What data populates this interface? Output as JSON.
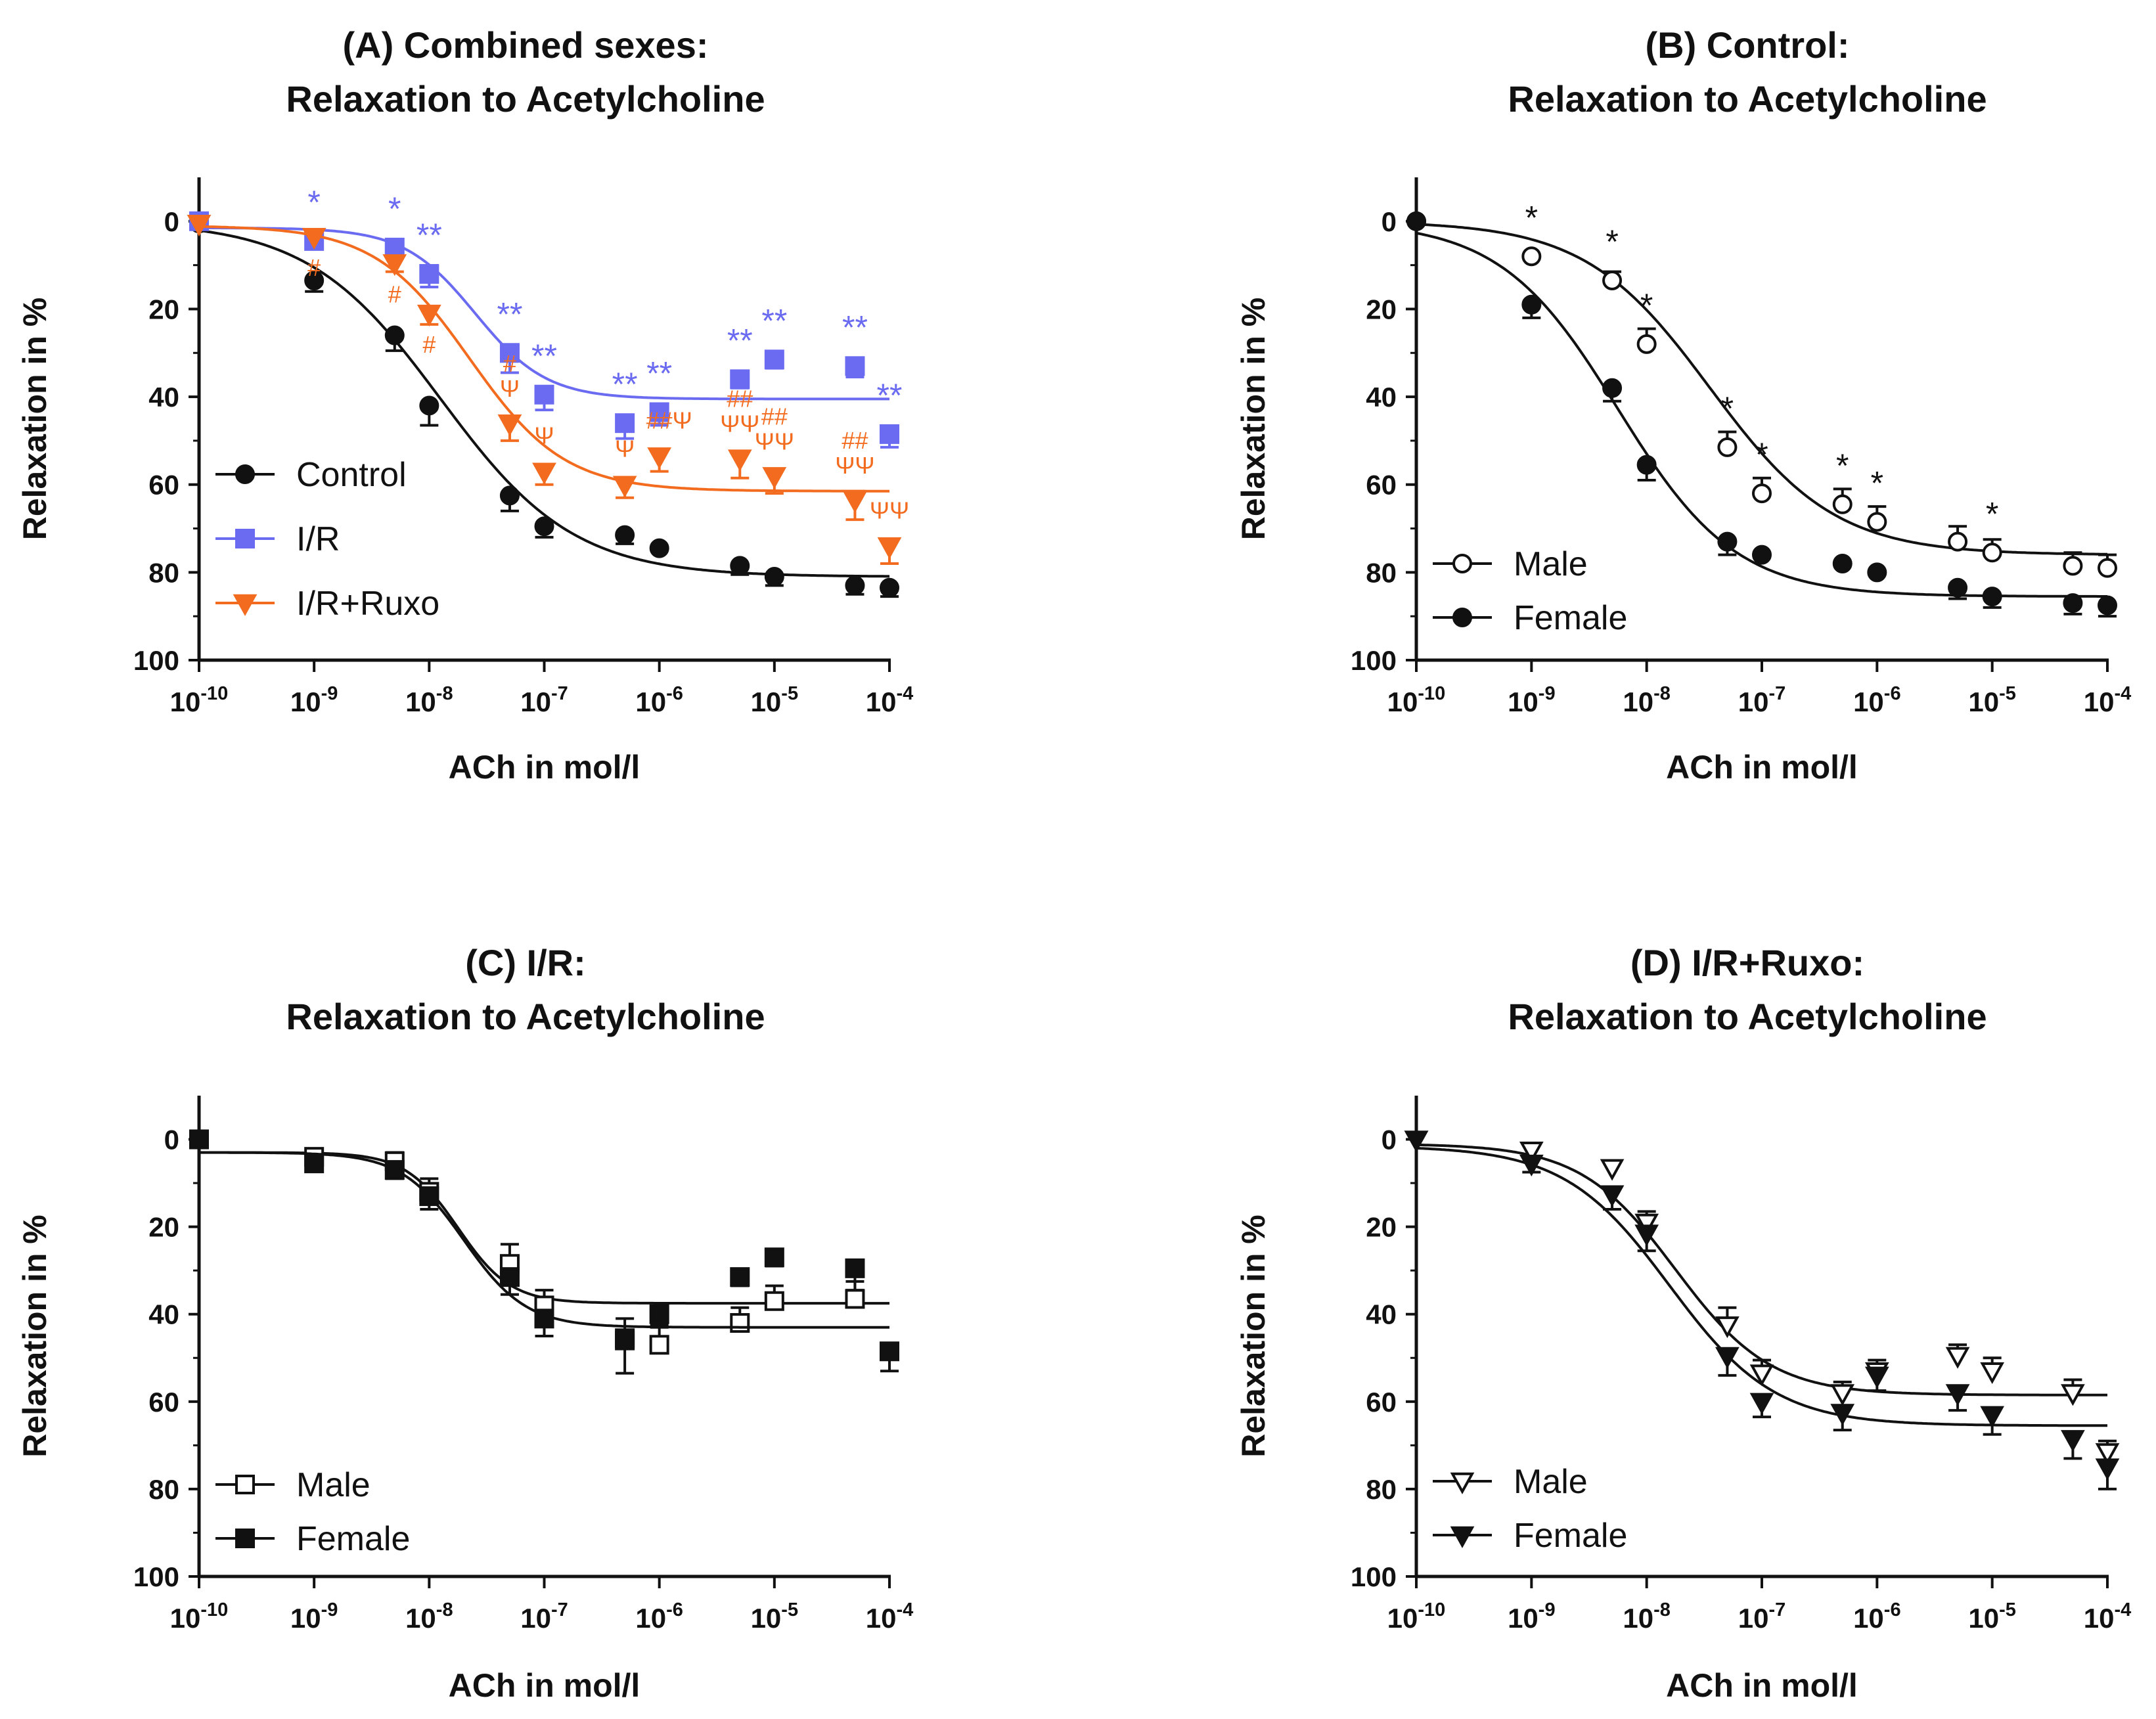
{
  "chart_data": [
    {
      "id": "A",
      "type": "scatter",
      "title": [
        "(A) Combined sexes:",
        "Relaxation to Acetylcholine"
      ],
      "xlabel": "ACh in mol/l",
      "ylabel": "Relaxation in %",
      "xscale": "log",
      "xlim": [
        -10,
        -4
      ],
      "ylim": [
        -10,
        100
      ],
      "y_inverted": true,
      "yticks": [
        "0",
        "20",
        "40",
        "60",
        "80",
        "100"
      ],
      "xticks": [
        {
          "base": "10",
          "exp": "-10"
        },
        {
          "base": "10",
          "exp": "-9"
        },
        {
          "base": "10",
          "exp": "-8"
        },
        {
          "base": "10",
          "exp": "-7"
        },
        {
          "base": "10",
          "exp": "-6"
        },
        {
          "base": "10",
          "exp": "-5"
        },
        {
          "base": "10",
          "exp": "-4"
        }
      ],
      "legend_position": "bottom-left",
      "series": [
        {
          "name": "Control",
          "color": "#111111",
          "marker": "circle",
          "filled": true,
          "x": [
            -10,
            -9,
            -8.3,
            -8,
            -7.3,
            -7,
            -6.3,
            -6,
            -5.3,
            -5,
            -4.3,
            -4
          ],
          "y": [
            0.5,
            13.5,
            26,
            42,
            62.5,
            69.5,
            71.5,
            74.5,
            78.5,
            81,
            83,
            83.5
          ],
          "err": [
            1,
            2.5,
            3.5,
            4.5,
            3.5,
            2.5,
            2,
            1.5,
            2,
            2,
            2,
            2
          ],
          "fit": {
            "top": 0,
            "bottom": 81,
            "logec50": -7.9,
            "hill": 0.75
          }
        },
        {
          "name": "I/R",
          "color": "#6b6bf2",
          "marker": "square",
          "filled": true,
          "x": [
            -10,
            -9,
            -8.3,
            -8,
            -7.3,
            -7,
            -6.3,
            -6,
            -5.3,
            -5,
            -4.3,
            -4
          ],
          "y": [
            0,
            4.5,
            6,
            12,
            30,
            39.5,
            46,
            43.5,
            36,
            31.5,
            33,
            48.5
          ],
          "err": [
            1,
            1.5,
            2,
            3,
            4.5,
            3.5,
            3.5,
            3,
            2,
            2,
            2.5,
            3
          ],
          "fit": {
            "top": 1.5,
            "bottom": 40.5,
            "logec50": -7.6,
            "hill": 1.4
          }
        },
        {
          "name": "I/R+Ruxo",
          "color": "#f26b1e",
          "marker": "triangle-down",
          "filled": true,
          "x": [
            -10,
            -9,
            -8.3,
            -8,
            -7.3,
            -7,
            -6.3,
            -6,
            -5.3,
            -5,
            -4.3,
            -4
          ],
          "y": [
            0.5,
            3.5,
            9.5,
            21,
            46,
            57,
            60,
            53.5,
            54,
            58,
            63.5,
            74
          ],
          "err": [
            1,
            1.5,
            2,
            2.5,
            4,
            3,
            3,
            3.5,
            4.5,
            4,
            4.5,
            4
          ],
          "fit": {
            "top": 1,
            "bottom": 61.5,
            "logec50": -7.65,
            "hill": 1.05
          }
        }
      ],
      "annotations": [
        {
          "text": "*",
          "x": -9,
          "y": 4.5,
          "color": "#6b6bf2"
        },
        {
          "text": "*",
          "x": -8.3,
          "y": 6,
          "color": "#6b6bf2"
        },
        {
          "text": "**",
          "x": -8,
          "y": 12,
          "color": "#6b6bf2"
        },
        {
          "text": "**",
          "x": -7.3,
          "y": 30,
          "color": "#6b6bf2"
        },
        {
          "text": "**",
          "x": -7,
          "y": 39.5,
          "color": "#6b6bf2"
        },
        {
          "text": "**",
          "x": -6.3,
          "y": 46,
          "color": "#6b6bf2"
        },
        {
          "text": "**",
          "x": -6,
          "y": 43.5,
          "color": "#6b6bf2"
        },
        {
          "text": "**",
          "x": -5.3,
          "y": 36,
          "color": "#6b6bf2"
        },
        {
          "text": "**",
          "x": -5,
          "y": 31.5,
          "color": "#6b6bf2"
        },
        {
          "text": "**",
          "x": -4.3,
          "y": 33,
          "color": "#6b6bf2"
        },
        {
          "text": "**",
          "x": -4,
          "y": 48.5,
          "color": "#6b6bf2"
        },
        {
          "text": "#",
          "x": -9,
          "y": 3.5,
          "color": "#f26b1e",
          "below": true
        },
        {
          "text": "#",
          "x": -8.3,
          "y": 9.5,
          "color": "#f26b1e",
          "below": true
        },
        {
          "text": "#",
          "x": -8,
          "y": 21,
          "color": "#f26b1e",
          "below": true
        },
        {
          "text": "#",
          "x": -7.3,
          "y": 46,
          "color": "#f26b1e",
          "offset": -2
        },
        {
          "text": "Ψ",
          "x": -7.3,
          "y": 46,
          "color": "#f26b1e",
          "offset": -1
        },
        {
          "text": "Ψ",
          "x": -7,
          "y": 57,
          "color": "#f26b1e"
        },
        {
          "text": "Ψ",
          "x": -6.3,
          "y": 60,
          "color": "#f26b1e"
        },
        {
          "text": "##",
          "x": -6,
          "y": 53.5,
          "color": "#f26b1e"
        },
        {
          "text": "Ψ",
          "x": -5.8,
          "y": 53.5,
          "color": "#f26b1e",
          "shift": true
        },
        {
          "text": "##",
          "x": -5.3,
          "y": 54,
          "color": "#f26b1e",
          "offset": -2
        },
        {
          "text": "ΨΨ",
          "x": -5.3,
          "y": 54,
          "color": "#f26b1e",
          "offset": -1
        },
        {
          "text": "##",
          "x": -5,
          "y": 58,
          "color": "#f26b1e",
          "offset": -2
        },
        {
          "text": "ΨΨ",
          "x": -5,
          "y": 58,
          "color": "#f26b1e",
          "offset": -1
        },
        {
          "text": "##",
          "x": -4.3,
          "y": 63.5,
          "color": "#f26b1e",
          "offset": -2
        },
        {
          "text": "ΨΨ",
          "x": -4.3,
          "y": 63.5,
          "color": "#f26b1e",
          "offset": -1
        },
        {
          "text": "ΨΨ",
          "x": -4,
          "y": 74,
          "color": "#f26b1e"
        }
      ]
    },
    {
      "id": "B",
      "type": "scatter",
      "title": [
        "(B) Control:",
        "Relaxation to Acetylcholine"
      ],
      "xlabel": "ACh in mol/l",
      "ylabel": "Relaxation in %",
      "xscale": "log",
      "xlim": [
        -10,
        -4
      ],
      "ylim": [
        -10,
        100
      ],
      "y_inverted": true,
      "yticks": [
        "0",
        "20",
        "40",
        "60",
        "80",
        "100"
      ],
      "xticks": [
        {
          "base": "10",
          "exp": "-10"
        },
        {
          "base": "10",
          "exp": "-9"
        },
        {
          "base": "10",
          "exp": "-8"
        },
        {
          "base": "10",
          "exp": "-7"
        },
        {
          "base": "10",
          "exp": "-6"
        },
        {
          "base": "10",
          "exp": "-5"
        },
        {
          "base": "10",
          "exp": "-4"
        }
      ],
      "legend_position": "bottom-left",
      "series": [
        {
          "name": "Male",
          "color": "#111111",
          "marker": "circle",
          "filled": false,
          "x": [
            -10,
            -9,
            -8.3,
            -8,
            -7.3,
            -7,
            -6.3,
            -6,
            -5.3,
            -5,
            -4.3,
            -4
          ],
          "y": [
            0,
            8,
            13.5,
            28,
            51.5,
            62,
            64.5,
            68.5,
            73,
            75.5,
            78.5,
            79
          ],
          "err": [
            1,
            1.5,
            2,
            3.5,
            3.5,
            3.5,
            3.5,
            3.5,
            3.5,
            3,
            3,
            3
          ],
          "fit": {
            "top": 0,
            "bottom": 76,
            "logec50": -7.45,
            "hill": 0.8
          }
        },
        {
          "name": "Female",
          "color": "#111111",
          "marker": "circle",
          "filled": true,
          "x": [
            -10,
            -9,
            -8.3,
            -8,
            -7.3,
            -7,
            -6.3,
            -6,
            -5.3,
            -5,
            -4.3,
            -4
          ],
          "y": [
            0,
            19,
            38,
            55.5,
            73,
            76,
            78,
            80,
            83.5,
            85.5,
            87,
            87.5
          ],
          "err": [
            1,
            3,
            3,
            3.5,
            3,
            1.5,
            1.5,
            1.5,
            2.5,
            2.5,
            2.5,
            2.5
          ],
          "fit": {
            "top": 0,
            "bottom": 85.5,
            "logec50": -8.25,
            "hill": 0.85
          }
        }
      ],
      "annotations": [
        {
          "text": "*",
          "x": -9,
          "y": 8,
          "color": "#111111"
        },
        {
          "text": "*",
          "x": -8.3,
          "y": 13.5,
          "color": "#111111"
        },
        {
          "text": "*",
          "x": -8,
          "y": 28,
          "color": "#111111"
        },
        {
          "text": "*",
          "x": -7.3,
          "y": 51.5,
          "color": "#111111"
        },
        {
          "text": "*",
          "x": -7,
          "y": 62,
          "color": "#111111"
        },
        {
          "text": "*",
          "x": -6.3,
          "y": 64.5,
          "color": "#111111"
        },
        {
          "text": "*",
          "x": -6,
          "y": 68.5,
          "color": "#111111"
        },
        {
          "text": "*",
          "x": -5,
          "y": 75.5,
          "color": "#111111"
        }
      ]
    },
    {
      "id": "C",
      "type": "scatter",
      "title": [
        "(C) I/R:",
        "Relaxation to Acetylcholine"
      ],
      "xlabel": "ACh in mol/l",
      "ylabel": "Relaxation in %",
      "xscale": "log",
      "xlim": [
        -10,
        -4
      ],
      "ylim": [
        -10,
        100
      ],
      "y_inverted": true,
      "yticks": [
        "0",
        "20",
        "40",
        "60",
        "80",
        "100"
      ],
      "xticks": [
        {
          "base": "10",
          "exp": "-10"
        },
        {
          "base": "10",
          "exp": "-9"
        },
        {
          "base": "10",
          "exp": "-8"
        },
        {
          "base": "10",
          "exp": "-7"
        },
        {
          "base": "10",
          "exp": "-6"
        },
        {
          "base": "10",
          "exp": "-5"
        },
        {
          "base": "10",
          "exp": "-4"
        }
      ],
      "legend_position": "bottom-left",
      "series": [
        {
          "name": "Male",
          "color": "#111111",
          "marker": "square",
          "filled": false,
          "x": [
            -10,
            -9,
            -8.3,
            -8,
            -7.3,
            -7,
            -6.3,
            -6,
            -5.3,
            -5,
            -4.3,
            -4
          ],
          "y": [
            0,
            4,
            5,
            12,
            28.5,
            38,
            46,
            47,
            42,
            37,
            36.5,
            null
          ],
          "err": [
            1,
            1.5,
            2,
            3,
            4.5,
            3.5,
            5,
            4.5,
            3.5,
            3.5,
            4,
            0
          ],
          "fit": {
            "top": 3,
            "bottom": 37.5,
            "logec50": -7.75,
            "hill": 1.9
          }
        },
        {
          "name": "Female",
          "color": "#111111",
          "marker": "square",
          "filled": true,
          "x": [
            -10,
            -9,
            -8.3,
            -8,
            -7.3,
            -7,
            -6.3,
            -6,
            -5.3,
            -5,
            -4.3,
            -4
          ],
          "y": [
            0,
            5.5,
            7,
            13,
            31.5,
            41,
            45.5,
            40,
            31.5,
            27,
            29.5,
            48.5
          ],
          "err": [
            1,
            1.5,
            2,
            3,
            4,
            4,
            8,
            3,
            2,
            2,
            5,
            4.5
          ],
          "fit": {
            "top": 3,
            "bottom": 43,
            "logec50": -7.7,
            "hill": 1.6
          }
        }
      ],
      "annotations": []
    },
    {
      "id": "D",
      "type": "scatter",
      "title": [
        "(D) I/R+Ruxo:",
        "Relaxation to Acetylcholine"
      ],
      "xlabel": "ACh in mol/l",
      "ylabel": "Relaxation in %",
      "xscale": "log",
      "xlim": [
        -10,
        -4
      ],
      "ylim": [
        -10,
        100
      ],
      "y_inverted": true,
      "yticks": [
        "0",
        "20",
        "40",
        "60",
        "80",
        "100"
      ],
      "xticks": [
        {
          "base": "10",
          "exp": "-10"
        },
        {
          "base": "10",
          "exp": "-9"
        },
        {
          "base": "10",
          "exp": "-8"
        },
        {
          "base": "10",
          "exp": "-7"
        },
        {
          "base": "10",
          "exp": "-6"
        },
        {
          "base": "10",
          "exp": "-5"
        },
        {
          "base": "10",
          "exp": "-4"
        }
      ],
      "legend_position": "bottom-left",
      "series": [
        {
          "name": "Male",
          "color": "#111111",
          "marker": "triangle-down",
          "filled": false,
          "x": [
            -10,
            -9,
            -8.3,
            -8,
            -7.3,
            -7,
            -6.3,
            -6,
            -5.3,
            -5,
            -4.3,
            -4
          ],
          "y": [
            0,
            2.5,
            6.5,
            19,
            42.5,
            53.5,
            58,
            53,
            49.5,
            53,
            58,
            71.5
          ],
          "err": [
            1,
            1.5,
            1.5,
            2.5,
            4,
            3,
            2.5,
            2.5,
            2.5,
            3,
            3,
            2.5
          ],
          "fit": {
            "top": 1,
            "bottom": 58.5,
            "logec50": -7.75,
            "hill": 1.05
          }
        },
        {
          "name": "Female",
          "color": "#111111",
          "marker": "triangle-down",
          "filled": true,
          "x": [
            -10,
            -9,
            -8.3,
            -8,
            -7.3,
            -7,
            -6.3,
            -6,
            -5.3,
            -5,
            -4.3,
            -4
          ],
          "y": [
            0,
            5.5,
            12.5,
            21.5,
            49.5,
            60,
            62.5,
            54,
            58,
            63,
            68.5,
            75
          ],
          "err": [
            1,
            2,
            3.5,
            4,
            4.5,
            3.5,
            4,
            3.5,
            4,
            4.5,
            4.5,
            5
          ],
          "fit": {
            "top": 1.5,
            "bottom": 65.5,
            "logec50": -7.8,
            "hill": 0.95
          }
        }
      ],
      "annotations": []
    }
  ]
}
